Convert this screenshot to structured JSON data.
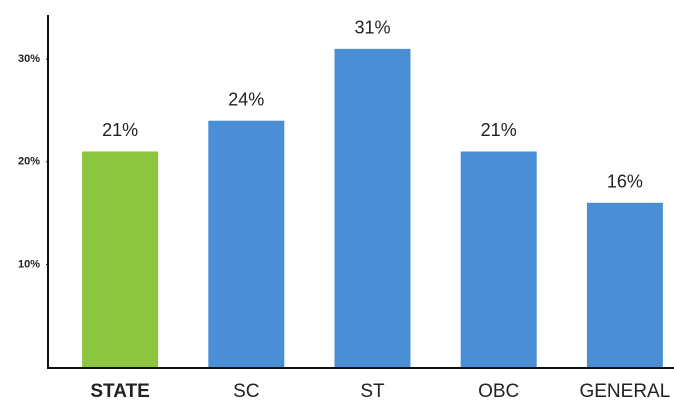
{
  "chart_data": {
    "type": "bar",
    "categories": [
      "STATE",
      "SC",
      "ST",
      "OBC",
      "GENERAL"
    ],
    "values": [
      21,
      24,
      31,
      21,
      16
    ],
    "value_labels": [
      "21%",
      "24%",
      "31%",
      "21%",
      "16%"
    ],
    "colors": [
      "#8cc63e",
      "#4a8fd6",
      "#4a8fd6",
      "#4a8fd6",
      "#4a8fd6"
    ],
    "ylim": [
      0,
      34.3
    ],
    "yticks": [
      {
        "value": 10,
        "label": "10%"
      },
      {
        "value": 20,
        "label": "20%"
      },
      {
        "value": 30,
        "label": "30%"
      }
    ],
    "grid": false
  }
}
